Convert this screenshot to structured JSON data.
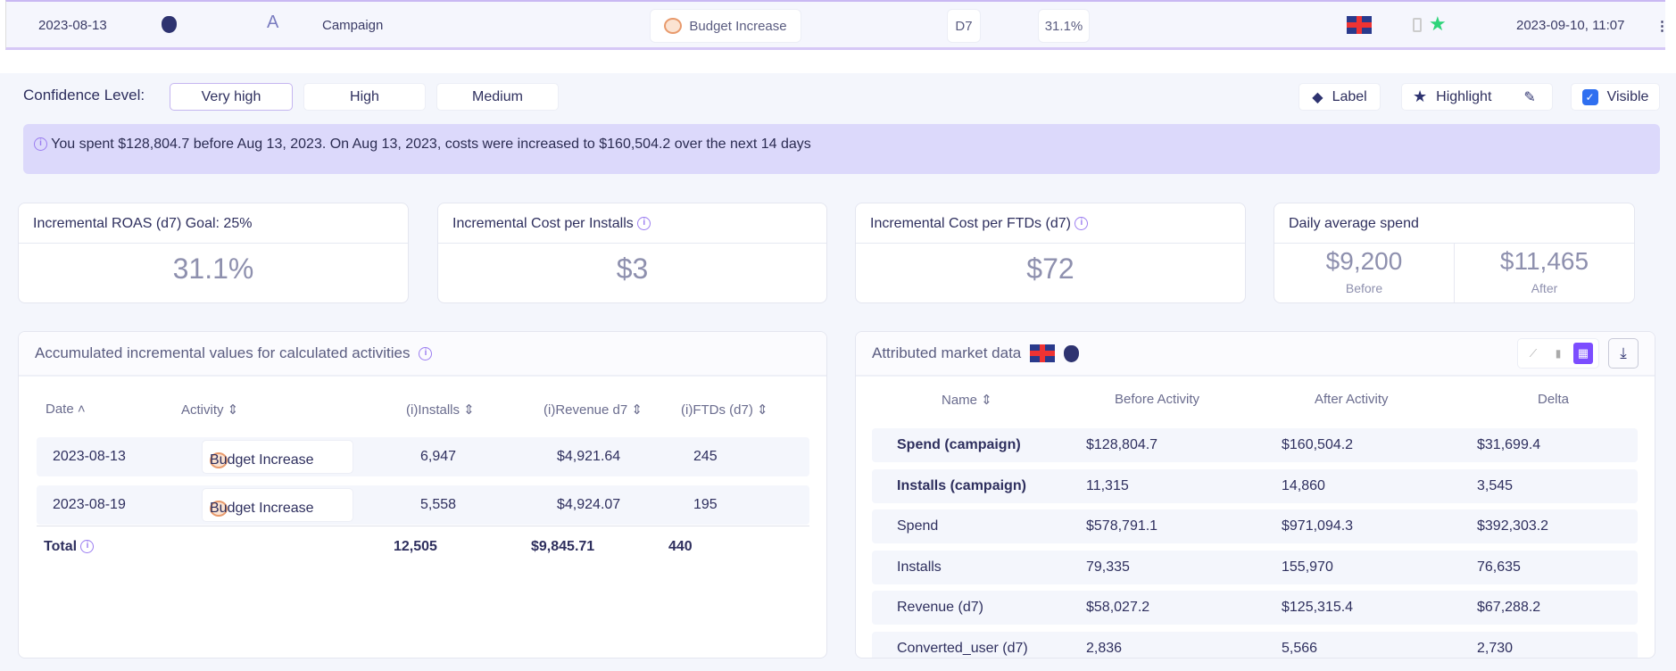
{
  "topbar": {
    "date": "2023-08-13",
    "platform_icon": "apple-icon",
    "store_icon": "app-store-icon",
    "level": "Campaign",
    "activity": "Budget Increase",
    "window": "D7",
    "roas": "31.1%",
    "country_icon": "uk-flag-icon",
    "timestamp": "2023-09-10, 11:07"
  },
  "confidence": {
    "label": "Confidence Level:",
    "options": [
      "Very high",
      "High",
      "Medium"
    ],
    "selected": "Very high"
  },
  "actions": {
    "label": "Label",
    "highlight": "Highlight",
    "visible": "Visible",
    "visible_checked": true
  },
  "banner": "You spent $128,804.7 before Aug 13, 2023. On Aug 13, 2023, costs were increased to $160,504.2 over the next 14 days",
  "cards": [
    {
      "title": "Incremental ROAS (d7) Goal: 25%",
      "value": "31.1%"
    },
    {
      "title": "Incremental Cost per Installs",
      "value": "$3"
    },
    {
      "title": "Incremental Cost per FTDs (d7)",
      "value": "$72"
    },
    {
      "title": "Daily average spend",
      "before_value": "$9,200",
      "before_label": "Before",
      "after_value": "$11,465",
      "after_label": "After"
    }
  ],
  "left_panel": {
    "title": "Accumulated incremental values for calculated activities",
    "columns": [
      "Date",
      "Activity",
      "(i)Installs",
      "(i)Revenue d7",
      "(i)FTDs (d7)"
    ],
    "rows": [
      {
        "date": "2023-08-13",
        "activity": "Budget Increase",
        "installs": "6,947",
        "revenue": "$4,921.64",
        "ftds": "245"
      },
      {
        "date": "2023-08-19",
        "activity": "Budget Increase",
        "installs": "5,558",
        "revenue": "$4,924.07",
        "ftds": "195"
      }
    ],
    "total": {
      "label": "Total",
      "installs": "12,505",
      "revenue": "$9,845.71",
      "ftds": "440"
    }
  },
  "right_panel": {
    "title": "Attributed market data",
    "selected_view": "table",
    "columns": [
      "Name",
      "Before Activity",
      "After Activity",
      "Delta"
    ],
    "rows": [
      {
        "name": "Spend (campaign)",
        "before": "$128,804.7",
        "after": "$160,504.2",
        "delta": "$31,699.4",
        "bold": true
      },
      {
        "name": "Installs (campaign)",
        "before": "11,315",
        "after": "14,860",
        "delta": "3,545",
        "bold": true
      },
      {
        "name": "Spend",
        "before": "$578,791.1",
        "after": "$971,094.3",
        "delta": "$392,303.2"
      },
      {
        "name": "Installs",
        "before": "79,335",
        "after": "155,970",
        "delta": "76,635"
      },
      {
        "name": "Revenue (d7)",
        "before": "$58,027.2",
        "after": "$125,315.4",
        "delta": "$67,288.2"
      },
      {
        "name": "Converted_user (d7)",
        "before": "2,836",
        "after": "5,566",
        "delta": "2,730"
      }
    ]
  },
  "colors": {
    "accent": "#7c4dff",
    "banner": "#dcd9fb",
    "star": "#2ed47a",
    "checkbox": "#2f6ff0"
  }
}
